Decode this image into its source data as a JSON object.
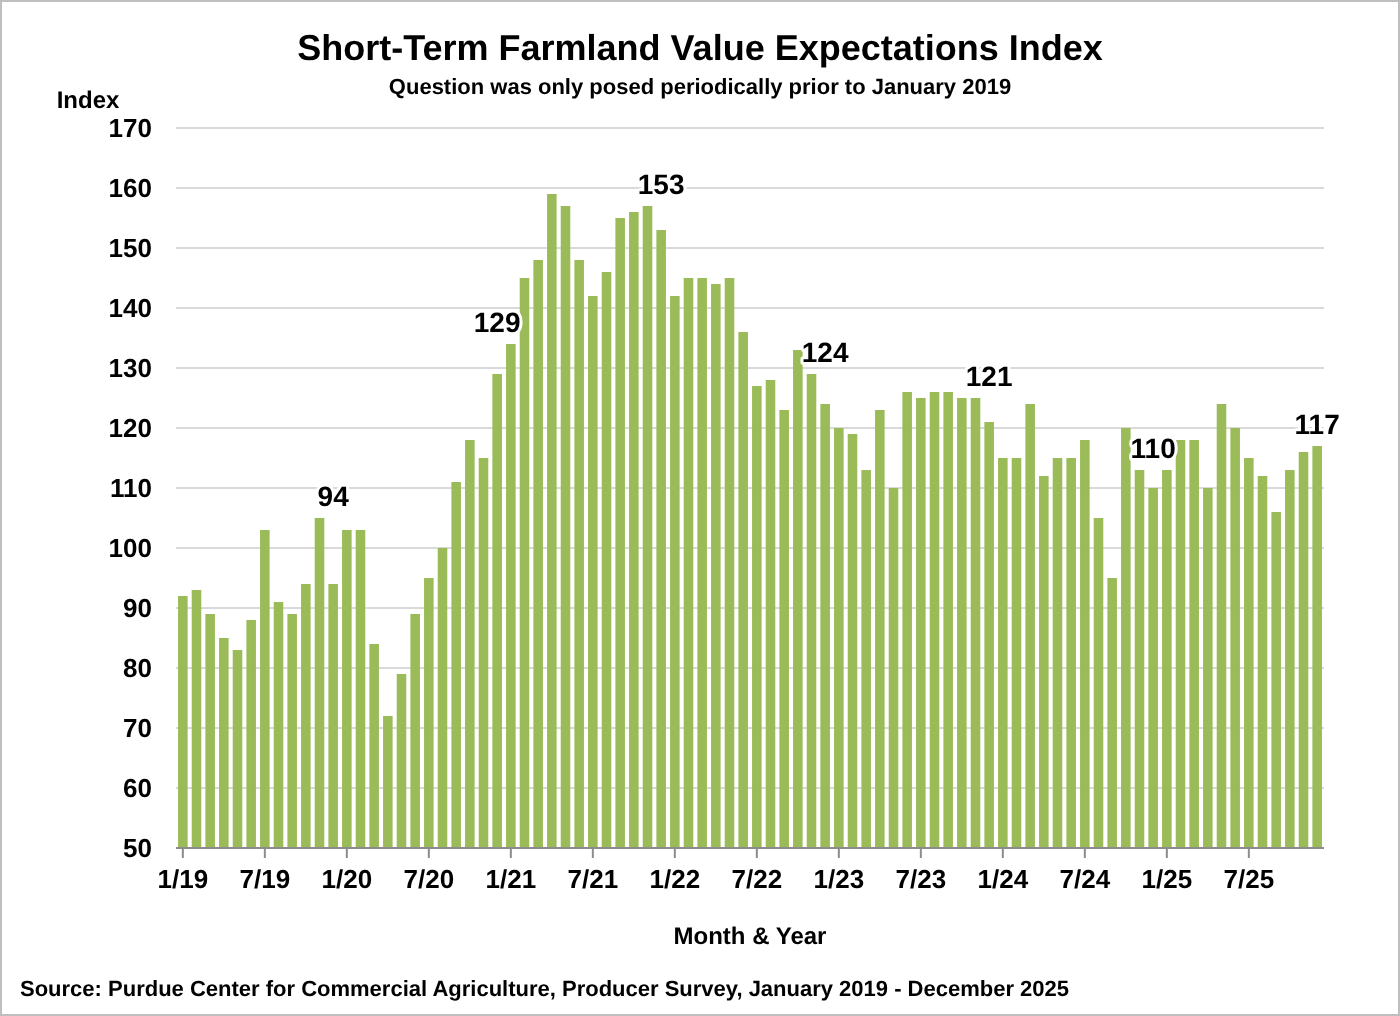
{
  "chart_data": {
    "type": "bar",
    "title": "Short-Term Farmland Value Expectations Index",
    "subtitle": "Question was only posed periodically prior to January 2019",
    "xlabel": "Month & Year",
    "ylabel": "Index",
    "annotations": [
      "Source: Purdue Center for Commercial Agriculture, Producer Survey, January 2019 - December 2025"
    ],
    "categories": [
      "1/19",
      null,
      null,
      null,
      null,
      null,
      "7/19",
      null,
      null,
      null,
      null,
      null,
      "1/20",
      null,
      null,
      null,
      null,
      null,
      "7/20",
      null,
      null,
      null,
      null,
      null,
      "1/21",
      null,
      null,
      null,
      null,
      null,
      "7/21",
      null,
      null,
      null,
      null,
      null,
      "1/22",
      null,
      null,
      null,
      null,
      null,
      "7/22",
      null,
      null,
      null,
      null,
      null,
      "1/23",
      null,
      null,
      null,
      null,
      null,
      "7/23",
      null,
      null,
      null,
      null,
      null,
      "1/24",
      null,
      null,
      null,
      null,
      null,
      "7/24",
      null,
      null,
      null,
      null,
      null,
      "1/25",
      null,
      null,
      null,
      null,
      null,
      "7/25",
      null,
      null,
      null,
      null,
      null
    ],
    "values": [
      92,
      93,
      89,
      85,
      83,
      88,
      103,
      91,
      89,
      94,
      105,
      94,
      103,
      103,
      84,
      72,
      79,
      89,
      95,
      100,
      111,
      118,
      115,
      129,
      134,
      145,
      148,
      159,
      157,
      148,
      142,
      146,
      155,
      156,
      157,
      153,
      142,
      145,
      145,
      144,
      145,
      136,
      127,
      128,
      123,
      133,
      129,
      124,
      120,
      119,
      113,
      123,
      110,
      126,
      125,
      126,
      126,
      125,
      125,
      121,
      115,
      115,
      124,
      112,
      115,
      115,
      118,
      105,
      95,
      120,
      113,
      110,
      113,
      118,
      118,
      110,
      124,
      120,
      115,
      112,
      106,
      113,
      116,
      117
    ],
    "value_labels": [
      null,
      null,
      null,
      null,
      null,
      null,
      null,
      null,
      null,
      null,
      null,
      "94",
      null,
      null,
      null,
      null,
      null,
      null,
      null,
      null,
      null,
      null,
      null,
      "129",
      null,
      null,
      null,
      null,
      null,
      null,
      null,
      null,
      null,
      null,
      null,
      "153",
      null,
      null,
      null,
      null,
      null,
      null,
      null,
      null,
      null,
      null,
      null,
      "124",
      null,
      null,
      null,
      null,
      null,
      null,
      null,
      null,
      null,
      null,
      null,
      "121",
      null,
      null,
      null,
      null,
      null,
      null,
      null,
      null,
      null,
      null,
      null,
      "110",
      null,
      null,
      null,
      null,
      null,
      null,
      null,
      null,
      null,
      null,
      null,
      "117"
    ],
    "color": "#9bbb59",
    "ylim": [
      50,
      170
    ],
    "yticks": [
      50,
      60,
      70,
      80,
      90,
      100,
      110,
      120,
      130,
      140,
      150,
      160,
      170
    ],
    "grid": "y"
  }
}
